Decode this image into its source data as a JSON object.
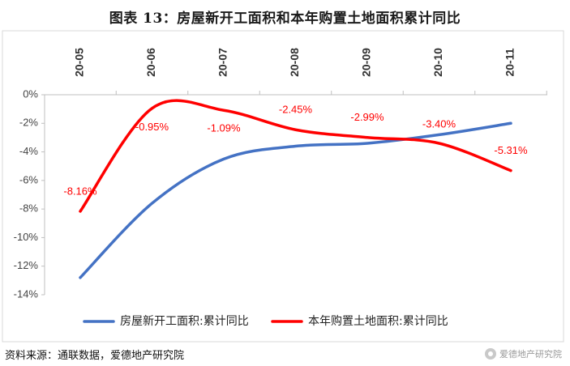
{
  "title": "图表 13：房屋新开工面积和本年购置土地面积累计同比",
  "source": "资料来源：通联数据，爱德地产研究院",
  "brand": "爱德地产研究院",
  "chart_data": {
    "type": "line",
    "categories": [
      "20-05",
      "20-06",
      "20-07",
      "20-08",
      "20-09",
      "20-10",
      "20-11"
    ],
    "ylim": [
      -14,
      0
    ],
    "yticks": [
      0,
      -2,
      -4,
      -6,
      -8,
      -10,
      -12,
      -14
    ],
    "ytick_labels": [
      "0%",
      "-2%",
      "-4%",
      "-6%",
      "-8%",
      "-10%",
      "-12%",
      "-14%"
    ],
    "legend_position": "bottom",
    "grid": false,
    "series": [
      {
        "name": "房屋新开工面积:累计同比",
        "color": "#4472C4",
        "values": [
          -12.8,
          -7.6,
          -4.5,
          -3.6,
          -3.4,
          -2.8,
          -2.0
        ],
        "labels": [
          "",
          "",
          "",
          "",
          "",
          "",
          ""
        ]
      },
      {
        "name": "本年购置土地面积:累计同比",
        "color": "#FF0000",
        "values": [
          -8.16,
          -0.95,
          -1.09,
          -2.45,
          -2.99,
          -3.4,
          -5.31
        ],
        "labels": [
          "-8.16%",
          "-0.95%",
          "-1.09%",
          "-2.45%",
          "-2.99%",
          "-3.40%",
          "-5.31%"
        ]
      }
    ]
  }
}
